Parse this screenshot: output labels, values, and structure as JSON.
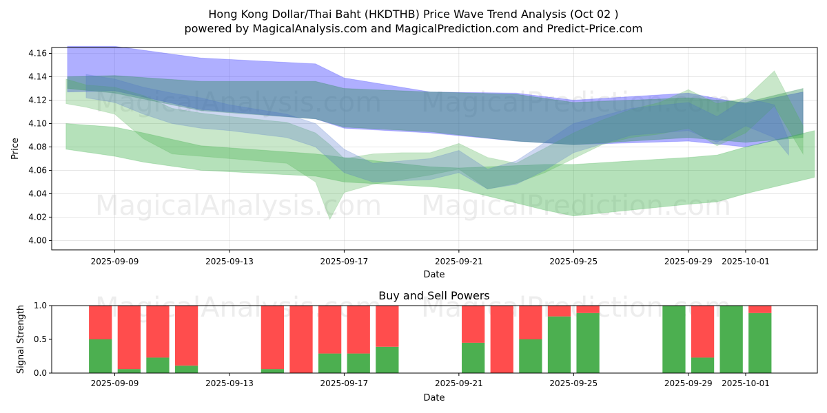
{
  "chart_data": [
    {
      "type": "area",
      "title": "Hong Kong Dollar/Thai Baht (HKDTHB) Price Wave Trend Analysis (Oct 02 )",
      "subtitle": "powered by MagicalAnalysis.com and MagicalPrediction.com and Predict-Price.com",
      "xlabel": "Date",
      "ylabel": "Price",
      "x_tick_labels": [
        "2025-09-09",
        "2025-09-13",
        "2025-09-17",
        "2025-09-21",
        "2025-09-25",
        "2025-09-29",
        "2025-10-01"
      ],
      "x_tick_days": [
        2,
        6,
        10,
        14,
        18,
        22,
        24
      ],
      "xlim_days": [
        -0.2,
        26.5
      ],
      "start_date": "2025-09-07",
      "y_ticks": [
        4.0,
        4.02,
        4.04,
        4.06,
        4.08,
        4.1,
        4.12,
        4.14,
        4.16
      ],
      "ylim": [
        3.992,
        4.165
      ],
      "watermarks": [
        "MagicalAnalysis.com",
        "MagicalPrediction.com",
        "MagicalAnalysis.com",
        "MagicalPrediction.com"
      ],
      "bands": [
        {
          "name": "blue-wide",
          "color": "#4040ff",
          "opacity": 0.42,
          "x": [
            0.35,
            2,
            5,
            9,
            10,
            13,
            16,
            18,
            22,
            24,
            26
          ],
          "upper": [
            4.166,
            4.166,
            4.156,
            4.151,
            4.139,
            4.127,
            4.126,
            4.12,
            4.126,
            4.117,
            4.127
          ],
          "lower": [
            4.127,
            4.128,
            4.112,
            4.104,
            4.096,
            4.092,
            4.085,
            4.082,
            4.085,
            4.08,
            4.091
          ]
        },
        {
          "name": "teal-wide",
          "color": "#2e8b57",
          "opacity": 0.4,
          "x": [
            0.35,
            2,
            5,
            9,
            10,
            13,
            16,
            18,
            22,
            24,
            26
          ],
          "upper": [
            4.14,
            4.141,
            4.136,
            4.136,
            4.13,
            4.127,
            4.125,
            4.118,
            4.122,
            4.118,
            4.13
          ],
          "lower": [
            4.13,
            4.126,
            4.111,
            4.104,
            4.097,
            4.093,
            4.085,
            4.082,
            4.088,
            4.084,
            4.088
          ]
        },
        {
          "name": "green-low",
          "color": "#3cb04a",
          "opacity": 0.38,
          "x": [
            0.3,
            2,
            3,
            5,
            9,
            10,
            13,
            14,
            17,
            18,
            22,
            23,
            24,
            26.4
          ],
          "upper": [
            4.1,
            4.097,
            4.092,
            4.081,
            4.074,
            4.071,
            4.063,
            4.062,
            4.065,
            4.065,
            4.071,
            4.073,
            4.08,
            4.094
          ],
          "lower": [
            4.078,
            4.072,
            4.067,
            4.06,
            4.055,
            4.05,
            4.046,
            4.044,
            4.026,
            4.021,
            4.031,
            4.033,
            4.04,
            4.054
          ]
        },
        {
          "name": "green-main",
          "color": "#4caf50",
          "opacity": 0.3,
          "x": [
            0.3,
            1,
            2,
            3,
            4,
            5,
            6,
            8,
            9,
            9.5,
            10,
            11,
            12,
            13,
            14,
            15,
            16,
            17,
            18,
            19,
            20,
            21,
            22,
            23,
            24,
            25,
            26
          ],
          "upper": [
            4.138,
            4.133,
            4.131,
            4.124,
            4.113,
            4.109,
            4.106,
            4.101,
            4.092,
            4.082,
            4.07,
            4.074,
            4.075,
            4.075,
            4.083,
            4.071,
            4.066,
            4.079,
            4.092,
            4.103,
            4.112,
            4.118,
            4.129,
            4.117,
            4.122,
            4.145,
            4.098
          ],
          "lower": [
            4.117,
            4.114,
            4.108,
            4.087,
            4.074,
            4.072,
            4.07,
            4.066,
            4.05,
            4.018,
            4.041,
            4.048,
            4.052,
            4.056,
            4.061,
            4.044,
            4.049,
            4.058,
            4.07,
            4.082,
            4.088,
            4.091,
            4.096,
            4.081,
            4.092,
            4.115,
            4.074
          ]
        },
        {
          "name": "blue-main",
          "color": "#4a6fc8",
          "opacity": 0.28,
          "x": [
            1,
            2,
            3,
            4,
            5,
            6,
            8,
            9,
            10,
            11,
            13,
            14,
            15,
            16,
            17,
            18,
            20,
            22,
            23,
            24,
            25,
            25.5
          ],
          "upper": [
            4.142,
            4.138,
            4.131,
            4.126,
            4.122,
            4.116,
            4.108,
            4.1,
            4.078,
            4.066,
            4.07,
            4.077,
            4.061,
            4.068,
            4.084,
            4.1,
            4.113,
            4.118,
            4.106,
            4.122,
            4.116,
            4.086
          ],
          "lower": [
            4.122,
            4.118,
            4.108,
            4.1,
            4.096,
            4.094,
            4.088,
            4.08,
            4.058,
            4.05,
            4.052,
            4.058,
            4.044,
            4.048,
            4.06,
            4.075,
            4.09,
            4.094,
            4.084,
            4.098,
            4.088,
            4.073
          ]
        }
      ]
    },
    {
      "type": "bar",
      "title": "Buy and Sell Powers",
      "xlabel": "Date",
      "ylabel": "Signal Strength",
      "ylim": [
        0,
        1.0
      ],
      "y_ticks": [
        0.0,
        0.5,
        1.0
      ],
      "x_tick_labels": [
        "2025-09-09",
        "2025-09-13",
        "2025-09-17",
        "2025-09-21",
        "2025-09-25",
        "2025-09-29",
        "2025-10-01"
      ],
      "x_tick_days": [
        2,
        6,
        10,
        14,
        18,
        22,
        24
      ],
      "xlim_days": [
        -0.2,
        26.5
      ],
      "buy_color": "#4caf50",
      "sell_color": "#ff4d4d",
      "series": [
        {
          "name": "Buy",
          "values": [
            0.5,
            0.06,
            0.23,
            0.11,
            0.06,
            0.0,
            0.29,
            0.29,
            0.39,
            0.45,
            0.0,
            0.5,
            0.84,
            0.89,
            1.0,
            0.23,
            1.0,
            0.89
          ]
        },
        {
          "name": "Sell",
          "values": [
            0.5,
            0.94,
            0.77,
            0.89,
            0.94,
            1.0,
            0.71,
            0.71,
            0.61,
            0.55,
            1.0,
            0.5,
            0.16,
            0.11,
            0.0,
            0.77,
            0.0,
            0.11
          ]
        }
      ],
      "bar_days": [
        1.5,
        2.5,
        3.5,
        4.5,
        7.5,
        8.5,
        9.5,
        10.5,
        11.5,
        14.5,
        15.5,
        16.5,
        17.5,
        18.5,
        21.5,
        22.5,
        23.5,
        24.5
      ]
    }
  ]
}
